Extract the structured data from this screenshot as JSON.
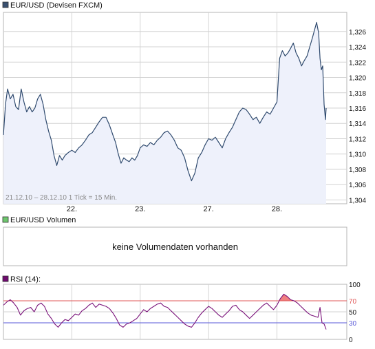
{
  "colors": {
    "price_line": "#2f4a6e",
    "price_fill": "#eef1fb",
    "grid": "#d3d3d3",
    "frame": "#b5b5b5",
    "legend_price": "#39506f",
    "legend_volume": "#6dc66d",
    "legend_rsi": "#6e0b6e",
    "rsi_line": "#7a127a",
    "rsi_upper": "#e05a5a",
    "rsi_lower": "#5a5ad8",
    "overbought_fill": "#f08080"
  },
  "panels": {
    "price": {
      "legend": "EUR/USD (Devisen FXCM)",
      "info": "21.12.10 – 28.12.10    1 Tick = 15 Min."
    },
    "volume": {
      "legend": "EUR/USD Volumen",
      "message": "keine Volumendaten vorhanden"
    },
    "rsi": {
      "legend": "RSI (14):"
    }
  },
  "chart_data": [
    {
      "type": "line",
      "title": "EUR/USD (Devisen FXCM)",
      "x_unit": "trading day (fractional)",
      "x_ticks": [
        {
          "x": 1.0,
          "label": "22."
        },
        {
          "x": 2.0,
          "label": "23."
        },
        {
          "x": 3.0,
          "label": "27."
        },
        {
          "x": 4.0,
          "label": "28."
        }
      ],
      "xlim": [
        0.0,
        4.72
      ],
      "ylim": [
        1.3035,
        1.3285
      ],
      "y_ticks": [
        1.304,
        1.306,
        1.308,
        1.31,
        1.312,
        1.314,
        1.316,
        1.318,
        1.32,
        1.322,
        1.324,
        1.326
      ],
      "y_tick_labels": [
        "1,304",
        "1,306",
        "1,308",
        "1,310",
        "1,312",
        "1,314",
        "1,316",
        "1,318",
        "1,320",
        "1,322",
        "1,324",
        "1,326"
      ],
      "grid": true,
      "filled": true,
      "series": [
        {
          "name": "EUR/USD",
          "x": [
            0.0,
            0.03,
            0.06,
            0.1,
            0.14,
            0.18,
            0.22,
            0.26,
            0.3,
            0.34,
            0.38,
            0.42,
            0.46,
            0.5,
            0.54,
            0.58,
            0.62,
            0.66,
            0.7,
            0.74,
            0.78,
            0.82,
            0.86,
            0.9,
            0.95,
            1.0,
            1.05,
            1.1,
            1.15,
            1.2,
            1.25,
            1.3,
            1.35,
            1.4,
            1.45,
            1.5,
            1.55,
            1.6,
            1.64,
            1.68,
            1.72,
            1.76,
            1.8,
            1.84,
            1.88,
            1.92,
            1.96,
            2.0,
            2.05,
            2.1,
            2.15,
            2.2,
            2.25,
            2.3,
            2.35,
            2.4,
            2.45,
            2.5,
            2.55,
            2.6,
            2.65,
            2.7,
            2.75,
            2.8,
            2.85,
            2.9,
            2.95,
            3.0,
            3.05,
            3.1,
            3.15,
            3.2,
            3.25,
            3.3,
            3.35,
            3.4,
            3.45,
            3.5,
            3.55,
            3.6,
            3.65,
            3.7,
            3.75,
            3.8,
            3.85,
            3.9,
            3.95,
            4.0,
            4.04,
            4.08,
            4.12,
            4.16,
            4.2,
            4.24,
            4.28,
            4.32,
            4.36,
            4.4,
            4.44,
            4.48,
            4.52,
            4.55,
            4.58,
            4.61,
            4.63,
            4.65,
            4.67,
            4.69,
            4.71,
            4.72
          ],
          "y": [
            1.3125,
            1.3165,
            1.3185,
            1.3172,
            1.3178,
            1.3162,
            1.3158,
            1.3185,
            1.3168,
            1.3155,
            1.3162,
            1.3155,
            1.316,
            1.3172,
            1.3178,
            1.3165,
            1.3145,
            1.313,
            1.3118,
            1.3098,
            1.3085,
            1.3098,
            1.3092,
            1.3098,
            1.3102,
            1.3105,
            1.3102,
            1.3108,
            1.3112,
            1.3118,
            1.3125,
            1.3128,
            1.3135,
            1.3142,
            1.3148,
            1.3148,
            1.3138,
            1.3125,
            1.3115,
            1.31,
            1.3088,
            1.3095,
            1.3092,
            1.309,
            1.3095,
            1.3092,
            1.3098,
            1.3108,
            1.3112,
            1.311,
            1.3115,
            1.3112,
            1.3118,
            1.3122,
            1.3128,
            1.313,
            1.3125,
            1.3118,
            1.3108,
            1.3105,
            1.3095,
            1.3078,
            1.3065,
            1.3075,
            1.3095,
            1.3102,
            1.3112,
            1.312,
            1.3118,
            1.3122,
            1.3115,
            1.3108,
            1.312,
            1.3128,
            1.3135,
            1.3145,
            1.3155,
            1.316,
            1.3158,
            1.3152,
            1.3145,
            1.3148,
            1.314,
            1.3148,
            1.3155,
            1.3152,
            1.316,
            1.3168,
            1.3225,
            1.3235,
            1.3228,
            1.3232,
            1.3238,
            1.3245,
            1.3232,
            1.3225,
            1.3215,
            1.3222,
            1.3228,
            1.324,
            1.3252,
            1.3262,
            1.3272,
            1.3258,
            1.3225,
            1.321,
            1.3215,
            1.3165,
            1.3145,
            1.316
          ]
        }
      ]
    },
    {
      "type": "line",
      "title": "RSI (14):",
      "ylim": [
        0,
        100
      ],
      "y_ticks": [
        0,
        30,
        50,
        70,
        100
      ],
      "y_tick_labels": [
        "0",
        "30",
        "50",
        "70",
        "100"
      ],
      "reference_lines": [
        70,
        30
      ],
      "grid": true,
      "series": [
        {
          "name": "RSI (14)",
          "x": [
            0.0,
            0.05,
            0.1,
            0.15,
            0.2,
            0.25,
            0.3,
            0.35,
            0.4,
            0.45,
            0.5,
            0.55,
            0.6,
            0.65,
            0.7,
            0.75,
            0.8,
            0.85,
            0.9,
            0.95,
            1.0,
            1.05,
            1.1,
            1.15,
            1.2,
            1.25,
            1.3,
            1.35,
            1.4,
            1.45,
            1.5,
            1.55,
            1.6,
            1.65,
            1.7,
            1.75,
            1.8,
            1.85,
            1.9,
            1.95,
            2.0,
            2.05,
            2.1,
            2.15,
            2.2,
            2.25,
            2.3,
            2.35,
            2.4,
            2.45,
            2.5,
            2.55,
            2.6,
            2.65,
            2.7,
            2.75,
            2.8,
            2.85,
            2.9,
            2.95,
            3.0,
            3.05,
            3.1,
            3.15,
            3.2,
            3.25,
            3.3,
            3.35,
            3.4,
            3.45,
            3.5,
            3.55,
            3.6,
            3.65,
            3.7,
            3.75,
            3.8,
            3.85,
            3.9,
            3.95,
            4.0,
            4.05,
            4.1,
            4.15,
            4.2,
            4.25,
            4.3,
            4.35,
            4.4,
            4.45,
            4.5,
            4.55,
            4.6,
            4.63,
            4.66,
            4.69,
            4.72
          ],
          "y": [
            62,
            68,
            72,
            66,
            58,
            44,
            52,
            56,
            58,
            50,
            62,
            66,
            60,
            46,
            38,
            28,
            22,
            30,
            36,
            34,
            40,
            46,
            44,
            52,
            56,
            62,
            66,
            58,
            64,
            62,
            60,
            56,
            48,
            38,
            26,
            22,
            28,
            30,
            34,
            38,
            46,
            54,
            50,
            56,
            60,
            64,
            66,
            60,
            58,
            52,
            46,
            40,
            34,
            28,
            24,
            22,
            30,
            40,
            48,
            54,
            60,
            56,
            50,
            44,
            40,
            46,
            52,
            60,
            62,
            54,
            50,
            44,
            38,
            44,
            50,
            56,
            62,
            66,
            60,
            54,
            62,
            74,
            82,
            78,
            72,
            70,
            66,
            60,
            54,
            48,
            44,
            42,
            40,
            58,
            30,
            28,
            18
          ]
        }
      ]
    }
  ]
}
